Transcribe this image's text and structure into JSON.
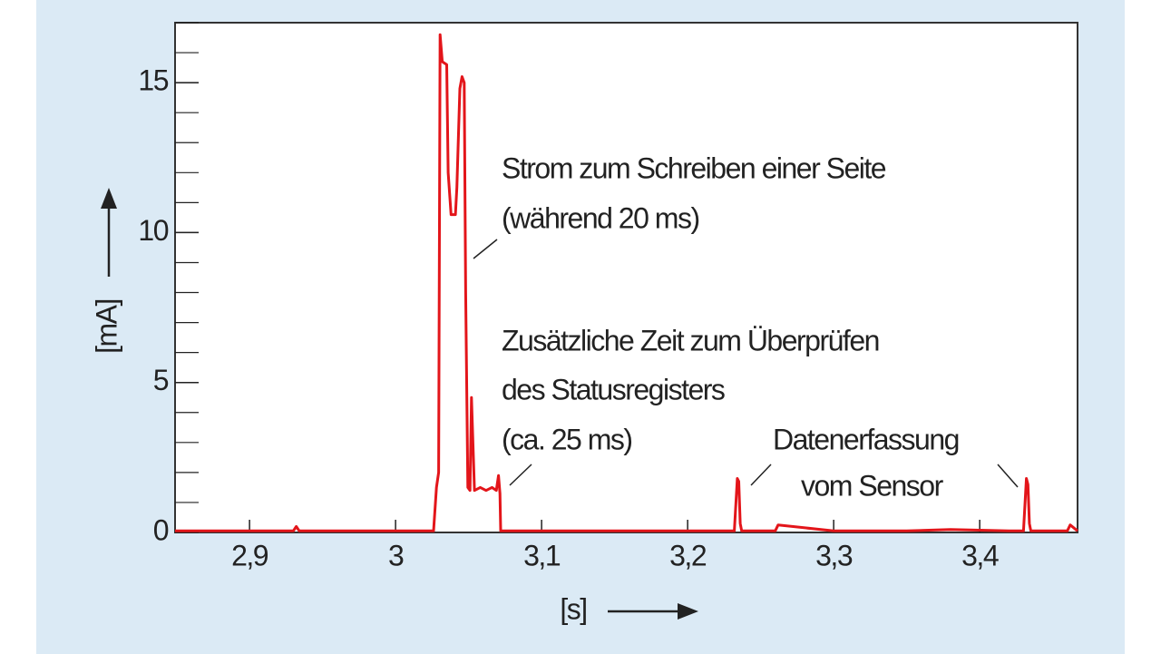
{
  "chart_data": {
    "type": "line",
    "x_label": "[s]",
    "y_label": "[mA]",
    "xlim": [
      2.849,
      3.467
    ],
    "ylim": [
      0,
      17
    ],
    "xticks": [
      {
        "value": 2.9,
        "label": "2,9"
      },
      3,
      {
        "value": 3.1,
        "label": "3,1"
      },
      {
        "value": 3.2,
        "label": "3,2"
      },
      {
        "value": 3.3,
        "label": "3,3"
      },
      {
        "value": 3.4,
        "label": "3,4"
      }
    ],
    "yticks": [
      0,
      5,
      10,
      15
    ],
    "y_minor_step": 1,
    "series": [
      {
        "color": "#e3151a",
        "x": [
          2.849,
          2.88,
          2.93,
          2.932,
          2.934,
          2.96,
          3.0,
          3.026,
          3.028,
          3.0295,
          3.0305,
          3.032,
          3.035,
          3.036,
          3.038,
          3.041,
          3.042,
          3.044,
          3.0455,
          3.047,
          3.048,
          3.0495,
          3.051,
          3.052,
          3.054,
          3.058,
          3.062,
          3.066,
          3.069,
          3.0705,
          3.0715,
          3.072,
          3.1,
          3.15,
          3.2,
          3.232,
          3.234,
          3.235,
          3.236,
          3.237,
          3.26,
          3.262,
          3.3,
          3.35,
          3.38,
          3.42,
          3.43,
          3.432,
          3.433,
          3.434,
          3.435,
          3.45,
          3.46,
          3.462,
          3.467
        ],
        "values": [
          0.05,
          0.05,
          0.05,
          0.2,
          0.05,
          0.05,
          0.05,
          0.05,
          1.5,
          2.0,
          16.6,
          15.7,
          15.6,
          12.0,
          10.6,
          10.6,
          11.5,
          14.8,
          15.2,
          15.0,
          8.0,
          1.5,
          1.4,
          4.5,
          1.4,
          1.5,
          1.4,
          1.5,
          1.4,
          1.9,
          1.3,
          0.05,
          0.05,
          0.05,
          0.05,
          0.05,
          1.8,
          1.7,
          0.3,
          0.05,
          0.05,
          0.25,
          0.05,
          0.05,
          0.1,
          0.05,
          0.05,
          1.8,
          1.6,
          0.3,
          0.05,
          0.05,
          0.05,
          0.25,
          0.05
        ]
      }
    ],
    "annotations": [
      "Strom zum Schreiben einer Seite",
      "(während 20 ms)",
      "Zusätzliche Zeit zum Überprüfen",
      "des Statusregisters",
      "(ca. 25 ms)",
      "Datenerfassung",
      "vom Sensor"
    ]
  }
}
